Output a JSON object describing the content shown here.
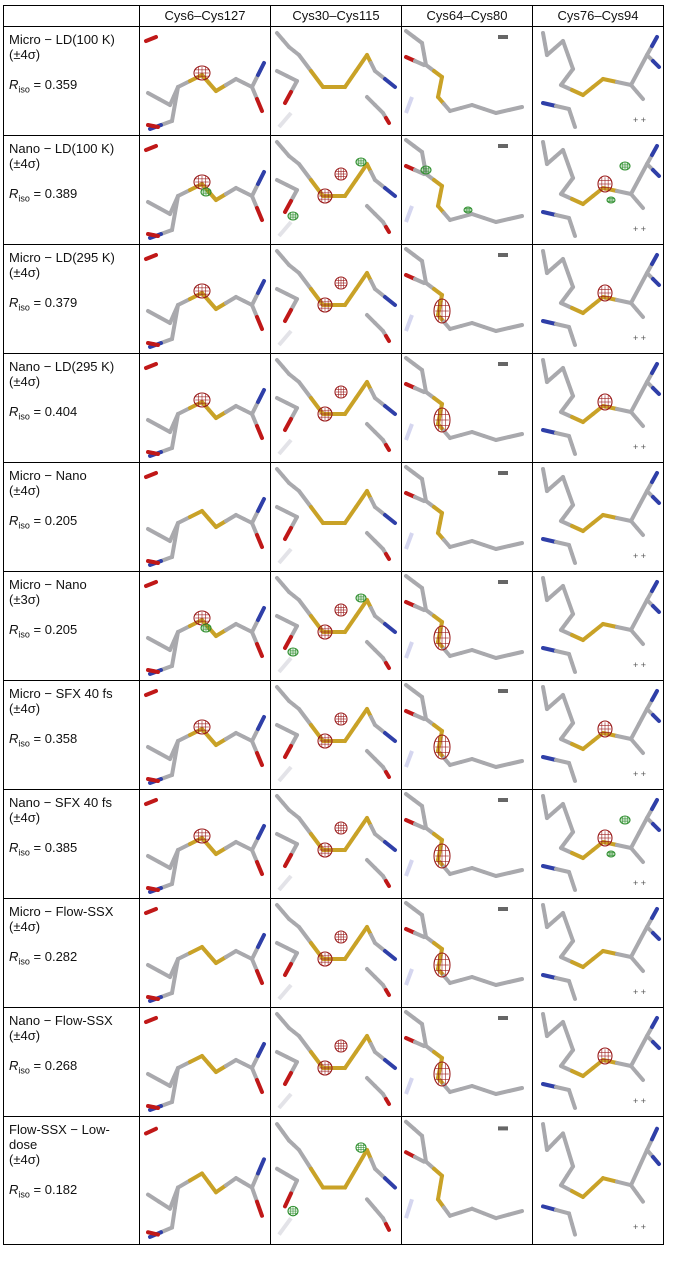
{
  "columns": [
    "",
    "Cys6–Cys127",
    "Cys30–Cys115",
    "Cys64–Cys80",
    "Cys76–Cys94"
  ],
  "rows": [
    {
      "line1": "Micro − LD(100 K)",
      "line2": "(±4σ)",
      "r": "= 0.359"
    },
    {
      "line1": "Nano − LD(100 K)",
      "line2": "(±4σ)",
      "r": "= 0.389"
    },
    {
      "line1": "Micro − LD(295 K)",
      "line2": "(±4σ)",
      "r": "= 0.379"
    },
    {
      "line1": "Nano − LD(295 K)",
      "line2": "(±4σ)",
      "r": "= 0.404"
    },
    {
      "line1": "Micro − Nano",
      "line2": "(±4σ)",
      "r": "= 0.205"
    },
    {
      "line1": "Micro − Nano",
      "line2": "(±3σ)",
      "r": "= 0.205"
    },
    {
      "line1": "Micro − SFX 40 fs",
      "line2": "(±4σ)",
      "r": "= 0.358"
    },
    {
      "line1": "Nano − SFX 40 fs",
      "line2": "(±4σ)",
      "r": "= 0.385"
    },
    {
      "line1": "Micro − Flow-SSX",
      "line2": "(±4σ)",
      "r": "= 0.282"
    },
    {
      "line1": "Nano − Flow-SSX",
      "line2": "(±4σ)",
      "r": "= 0.268"
    },
    {
      "line1": "Flow-SSX − Low-",
      "line1b": "dose",
      "line2": "(±4σ)",
      "r": "= 0.182"
    }
  ],
  "r_symbol": "R",
  "r_sub": "iso",
  "density_marks": [
    [
      "r",
      "",
      "",
      ""
    ],
    [
      "rg",
      "rg",
      "g",
      "rg"
    ],
    [
      "r",
      "r",
      "r",
      "r"
    ],
    [
      "r",
      "r",
      "r",
      "r"
    ],
    [
      "",
      "",
      "",
      ""
    ],
    [
      "rg",
      "rg",
      "r",
      ""
    ],
    [
      "r",
      "r",
      "r",
      "r"
    ],
    [
      "r",
      "r",
      "r",
      "rg"
    ],
    [
      "",
      "r",
      "r",
      ""
    ],
    [
      "",
      "r",
      "r",
      "r"
    ],
    [
      "",
      "g",
      "",
      ""
    ]
  ],
  "colors": {
    "carbon": "#a9a9ad",
    "sulfur": "#c9a227",
    "nitrogen": "#2f3fa8",
    "oxygen": "#c01818",
    "neg_density": "#9a1b1b",
    "pos_density": "#2f8f2f"
  }
}
